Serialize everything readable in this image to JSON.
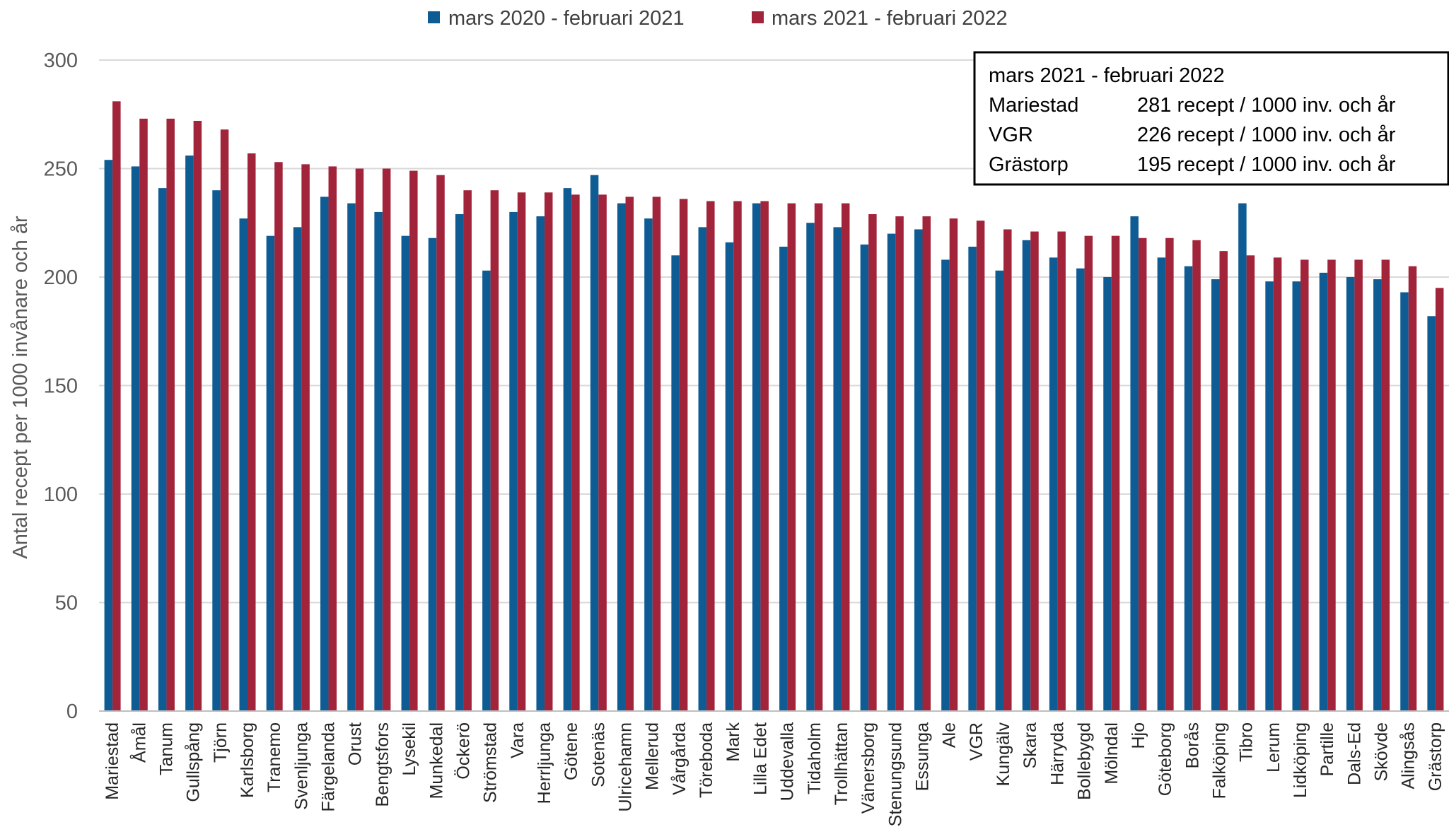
{
  "chart_data": {
    "type": "bar",
    "ylabel": "Antal recept per 1000 invånare och år",
    "ylim": [
      0,
      300
    ],
    "yticks": [
      0,
      50,
      100,
      150,
      200,
      250,
      300
    ],
    "grid": true,
    "legend_position": "top",
    "categories": [
      "Mariestad",
      "Åmål",
      "Tanum",
      "Gullspång",
      "Tjörn",
      "Karlsborg",
      "Tranemo",
      "Svenljunga",
      "Färgelanda",
      "Orust",
      "Bengtsfors",
      "Lysekil",
      "Munkedal",
      "Öckerö",
      "Strömstad",
      "Vara",
      "Herrljunga",
      "Götene",
      "Sotenäs",
      "Ulricehamn",
      "Mellerud",
      "Vårgårda",
      "Töreboda",
      "Mark",
      "Lilla Edet",
      "Uddevalla",
      "Tidaholm",
      "Trollhättan",
      "Vänersborg",
      "Stenungsund",
      "Essunga",
      "Ale",
      "VGR",
      "Kungälv",
      "Skara",
      "Härryda",
      "Bollebygd",
      "Mölndal",
      "Hjo",
      "Göteborg",
      "Borås",
      "Falköping",
      "Tibro",
      "Lerum",
      "Lidköping",
      "Partille",
      "Dals-Ed",
      "Skövde",
      "Alingsås",
      "Grästorp"
    ],
    "series": [
      {
        "name": "mars 2020 - februari 2021",
        "color": "#0E5C93",
        "values": [
          254,
          251,
          241,
          256,
          240,
          227,
          219,
          223,
          237,
          234,
          230,
          219,
          218,
          229,
          203,
          230,
          228,
          241,
          247,
          234,
          227,
          210,
          223,
          216,
          234,
          214,
          225,
          223,
          215,
          220,
          222,
          208,
          214,
          203,
          217,
          209,
          204,
          200,
          228,
          209,
          205,
          199,
          234,
          198,
          198,
          202,
          200,
          199,
          193,
          182
        ]
      },
      {
        "name": "mars 2021 - februari 2022",
        "color": "#A2243A",
        "values": [
          281,
          273,
          273,
          272,
          268,
          257,
          253,
          252,
          251,
          250,
          250,
          249,
          247,
          240,
          240,
          239,
          239,
          238,
          238,
          237,
          237,
          236,
          235,
          235,
          235,
          234,
          234,
          234,
          229,
          228,
          228,
          227,
          226,
          222,
          221,
          221,
          219,
          219,
          218,
          218,
          217,
          212,
          210,
          209,
          208,
          208,
          208,
          208,
          205,
          195
        ]
      }
    ],
    "annotation": {
      "title": "mars 2021 - februari 2022",
      "rows": [
        {
          "label": "Mariestad",
          "value": "281 recept / 1000 inv. och år"
        },
        {
          "label": "VGR",
          "value": "226 recept / 1000 inv. och år"
        },
        {
          "label": "Grästorp",
          "value": "195 recept / 1000 inv. och år"
        }
      ]
    }
  }
}
